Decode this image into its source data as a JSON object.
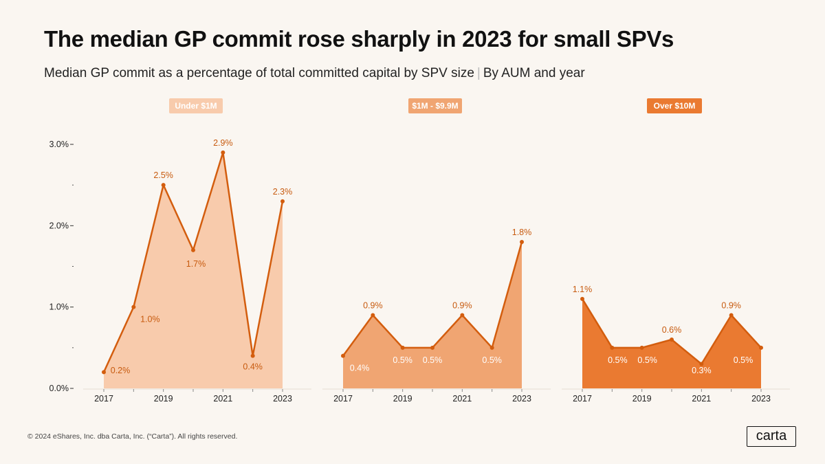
{
  "header": {
    "title": "The median GP commit rose sharply in 2023 for small SPVs",
    "subtitle_main": "Median GP commit as a percentage of total committed capital by SPV size",
    "subtitle_sep": "|",
    "subtitle_tail": "By AUM and year"
  },
  "footer": {
    "copyright": "© 2024 eShares, Inc. dba Carta, Inc. (“Carta”). All rights reserved.",
    "logo_text": "carta"
  },
  "colors": {
    "panel1_fill": "#f8cbac",
    "panel1_pill": "#f8cbac",
    "panel2_fill": "#f0a572",
    "panel2_pill": "#f0a572",
    "panel3_fill": "#ea7a31",
    "panel3_pill": "#ea7a31",
    "line": "#d35d0e",
    "label_dark": "#c75a0e",
    "label_light": "#ffffff"
  },
  "chart_data": {
    "type": "area",
    "title": "The median GP commit rose sharply in 2023 for small SPVs",
    "xlabel": "",
    "ylabel": "",
    "ylim": [
      0,
      3.0
    ],
    "y_ticks": [
      "0.0%",
      "1.0%",
      "2.0%",
      "3.0%"
    ],
    "y_tick_values": [
      0,
      1,
      2,
      3
    ],
    "x": [
      2017,
      2018,
      2019,
      2020,
      2021,
      2022,
      2023
    ],
    "x_tick_labels": [
      "2017",
      "2019",
      "2021",
      "2023"
    ],
    "x_tick_values": [
      2017,
      2019,
      2021,
      2023
    ],
    "series": [
      {
        "name": "Under $1M",
        "values": [
          0.2,
          1.0,
          2.5,
          1.7,
          2.9,
          0.4,
          2.3
        ],
        "labels": [
          "0.2%",
          "1.0%",
          "2.5%",
          "1.7%",
          "2.9%",
          "0.4%",
          "2.3%"
        ]
      },
      {
        "name": "$1M - $9.9M",
        "values": [
          0.4,
          0.9,
          0.5,
          0.5,
          0.9,
          0.5,
          1.8
        ],
        "labels": [
          "0.4%",
          "0.9%",
          "0.5%",
          "0.5%",
          "0.9%",
          "0.5%",
          "1.8%"
        ]
      },
      {
        "name": "Over $10M",
        "values": [
          1.1,
          0.5,
          0.5,
          0.6,
          0.3,
          0.9,
          0.5
        ],
        "labels": [
          "1.1%",
          "0.5%",
          "0.5%",
          "0.6%",
          "0.3%",
          "0.9%",
          "0.5%"
        ]
      }
    ]
  }
}
